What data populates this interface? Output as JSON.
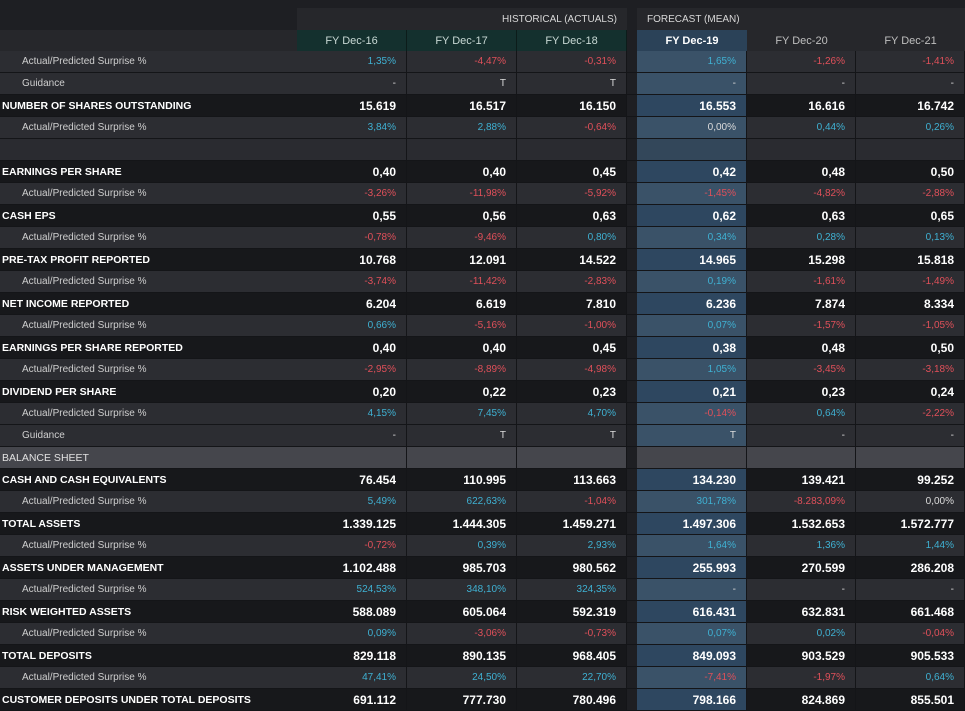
{
  "header": {
    "historical_label": "HISTORICAL (ACTUALS)",
    "forecast_label": "FORECAST (MEAN)",
    "columns": [
      "FY Dec-16",
      "FY Dec-17",
      "FY Dec-18",
      "FY Dec-19",
      "FY Dec-20",
      "FY Dec-21"
    ]
  },
  "colors": {
    "positive": "#3fb1d3",
    "negative": "#e0505a",
    "selected_column": "#2e4760",
    "historical_header": "#14302e"
  },
  "rows": [
    {
      "type": "sub",
      "label": "Actual/Predicted Surprise %",
      "values": [
        "1,35%",
        "-4,47%",
        "-0,31%",
        "1,65%",
        "-1,26%",
        "-1,41%"
      ]
    },
    {
      "type": "sub",
      "label": "Guidance",
      "values": [
        "-",
        "T",
        "T",
        "-",
        "-",
        "-"
      ]
    },
    {
      "type": "main",
      "label": "NUMBER OF SHARES OUTSTANDING",
      "values": [
        "15.619",
        "16.517",
        "16.150",
        "16.553",
        "16.616",
        "16.742"
      ]
    },
    {
      "type": "sub",
      "label": "Actual/Predicted Surprise %",
      "values": [
        "3,84%",
        "2,88%",
        "-0,64%",
        "0,00%",
        "0,44%",
        "0,26%"
      ]
    },
    {
      "type": "empty",
      "label": "",
      "values": [
        "",
        "",
        "",
        "",
        "",
        ""
      ]
    },
    {
      "type": "main",
      "label": "EARNINGS PER SHARE",
      "values": [
        "0,40",
        "0,40",
        "0,45",
        "0,42",
        "0,48",
        "0,50"
      ]
    },
    {
      "type": "sub",
      "label": "Actual/Predicted Surprise %",
      "values": [
        "-3,26%",
        "-11,98%",
        "-5,92%",
        "-1,45%",
        "-4,82%",
        "-2,88%"
      ]
    },
    {
      "type": "main",
      "label": "CASH EPS",
      "values": [
        "0,55",
        "0,56",
        "0,63",
        "0,62",
        "0,63",
        "0,65"
      ]
    },
    {
      "type": "sub",
      "label": "Actual/Predicted Surprise %",
      "values": [
        "-0,78%",
        "-9,46%",
        "0,80%",
        "0,34%",
        "0,28%",
        "0,13%"
      ]
    },
    {
      "type": "main",
      "label": "PRE-TAX PROFIT REPORTED",
      "values": [
        "10.768",
        "12.091",
        "14.522",
        "14.965",
        "15.298",
        "15.818"
      ]
    },
    {
      "type": "sub",
      "label": "Actual/Predicted Surprise %",
      "values": [
        "-3,74%",
        "-11,42%",
        "-2,83%",
        "0,19%",
        "-1,61%",
        "-1,49%"
      ]
    },
    {
      "type": "main",
      "label": "NET INCOME REPORTED",
      "values": [
        "6.204",
        "6.619",
        "7.810",
        "6.236",
        "7.874",
        "8.334"
      ]
    },
    {
      "type": "sub",
      "label": "Actual/Predicted Surprise %",
      "values": [
        "0,66%",
        "-5,16%",
        "-1,00%",
        "0,07%",
        "-1,57%",
        "-1,05%"
      ]
    },
    {
      "type": "main",
      "label": "EARNINGS PER SHARE REPORTED",
      "values": [
        "0,40",
        "0,40",
        "0,45",
        "0,38",
        "0,48",
        "0,50"
      ]
    },
    {
      "type": "sub",
      "label": "Actual/Predicted Surprise %",
      "values": [
        "-2,95%",
        "-8,89%",
        "-4,98%",
        "1,05%",
        "-3,45%",
        "-3,18%"
      ]
    },
    {
      "type": "main",
      "label": "DIVIDEND PER SHARE",
      "values": [
        "0,20",
        "0,22",
        "0,23",
        "0,21",
        "0,23",
        "0,24"
      ]
    },
    {
      "type": "sub",
      "label": "Actual/Predicted Surprise %",
      "values": [
        "4,15%",
        "7,45%",
        "4,70%",
        "-0,14%",
        "0,64%",
        "-2,22%"
      ]
    },
    {
      "type": "sub",
      "label": "Guidance",
      "values": [
        "-",
        "T",
        "T",
        "T",
        "-",
        "-"
      ]
    },
    {
      "type": "section",
      "label": "BALANCE SHEET",
      "values": [
        "",
        "",
        "",
        "",
        "",
        ""
      ]
    },
    {
      "type": "main",
      "label": "CASH AND CASH EQUIVALENTS",
      "values": [
        "76.454",
        "110.995",
        "113.663",
        "134.230",
        "139.421",
        "99.252"
      ]
    },
    {
      "type": "sub",
      "label": "Actual/Predicted Surprise %",
      "values": [
        "5,49%",
        "622,63%",
        "-1,04%",
        "301,78%",
        "-8.283,09%",
        "0,00%"
      ]
    },
    {
      "type": "main",
      "label": "TOTAL ASSETS",
      "values": [
        "1.339.125",
        "1.444.305",
        "1.459.271",
        "1.497.306",
        "1.532.653",
        "1.572.777"
      ]
    },
    {
      "type": "sub",
      "label": "Actual/Predicted Surprise %",
      "values": [
        "-0,72%",
        "0,39%",
        "2,93%",
        "1,64%",
        "1,36%",
        "1,44%"
      ]
    },
    {
      "type": "main",
      "label": "ASSETS UNDER MANAGEMENT",
      "values": [
        "1.102.488",
        "985.703",
        "980.562",
        "255.993",
        "270.599",
        "286.208"
      ]
    },
    {
      "type": "sub",
      "label": "Actual/Predicted Surprise %",
      "values": [
        "524,53%",
        "348,10%",
        "324,35%",
        "-",
        "-",
        "-"
      ]
    },
    {
      "type": "main",
      "label": "RISK WEIGHTED ASSETS",
      "values": [
        "588.089",
        "605.064",
        "592.319",
        "616.431",
        "632.831",
        "661.468"
      ]
    },
    {
      "type": "sub",
      "label": "Actual/Predicted Surprise %",
      "values": [
        "0,09%",
        "-3,06%",
        "-0,73%",
        "0,07%",
        "0,02%",
        "-0,04%"
      ]
    },
    {
      "type": "main",
      "label": "TOTAL DEPOSITS",
      "values": [
        "829.118",
        "890.135",
        "968.405",
        "849.093",
        "903.529",
        "905.533"
      ]
    },
    {
      "type": "sub",
      "label": "Actual/Predicted Surprise %",
      "values": [
        "47,41%",
        "24,50%",
        "22,70%",
        "-7,41%",
        "-1,97%",
        "0,64%"
      ]
    },
    {
      "type": "main",
      "label": "CUSTOMER DEPOSITS UNDER TOTAL DEPOSITS",
      "values": [
        "691.112",
        "777.730",
        "780.496",
        "798.166",
        "824.869",
        "855.501"
      ]
    }
  ]
}
